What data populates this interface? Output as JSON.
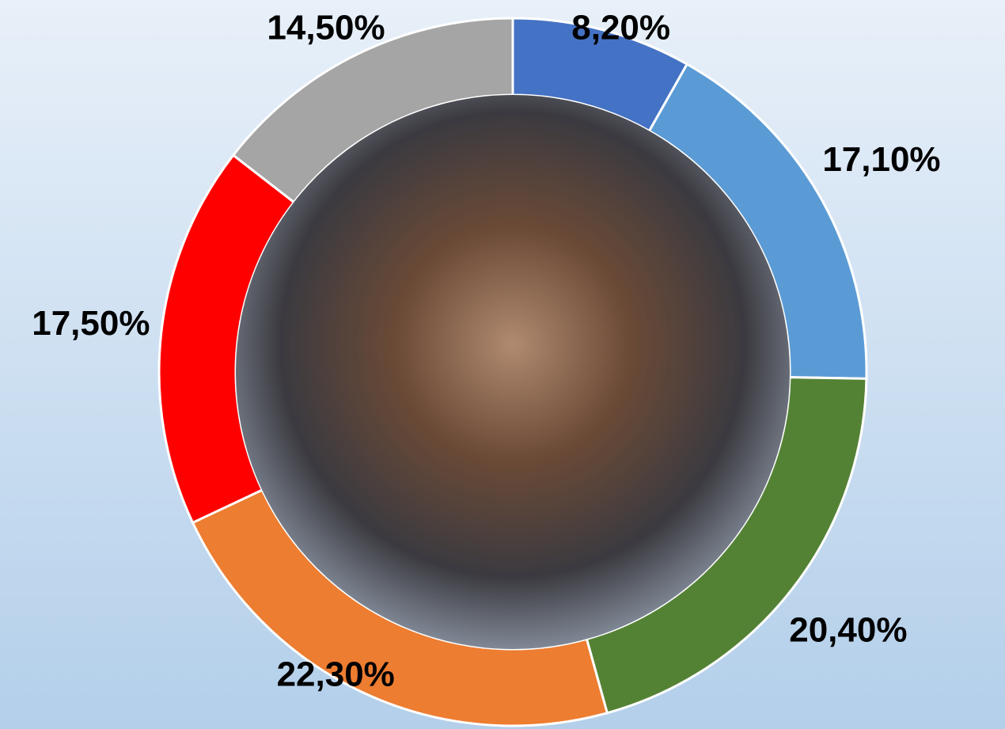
{
  "chart_data": {
    "type": "donut",
    "categories": [
      null,
      null,
      null,
      null,
      null,
      null
    ],
    "values": [
      8.2,
      17.1,
      20.4,
      22.3,
      17.5,
      14.5
    ],
    "value_labels": [
      "8,20%",
      "17,10%",
      "20,40%",
      "22,30%",
      "17,50%",
      "14,50%"
    ],
    "colors": [
      "#4472c4",
      "#5b9bd5",
      "#548235",
      "#ed7d31",
      "#ff0000",
      "#a5a5a5"
    ]
  }
}
